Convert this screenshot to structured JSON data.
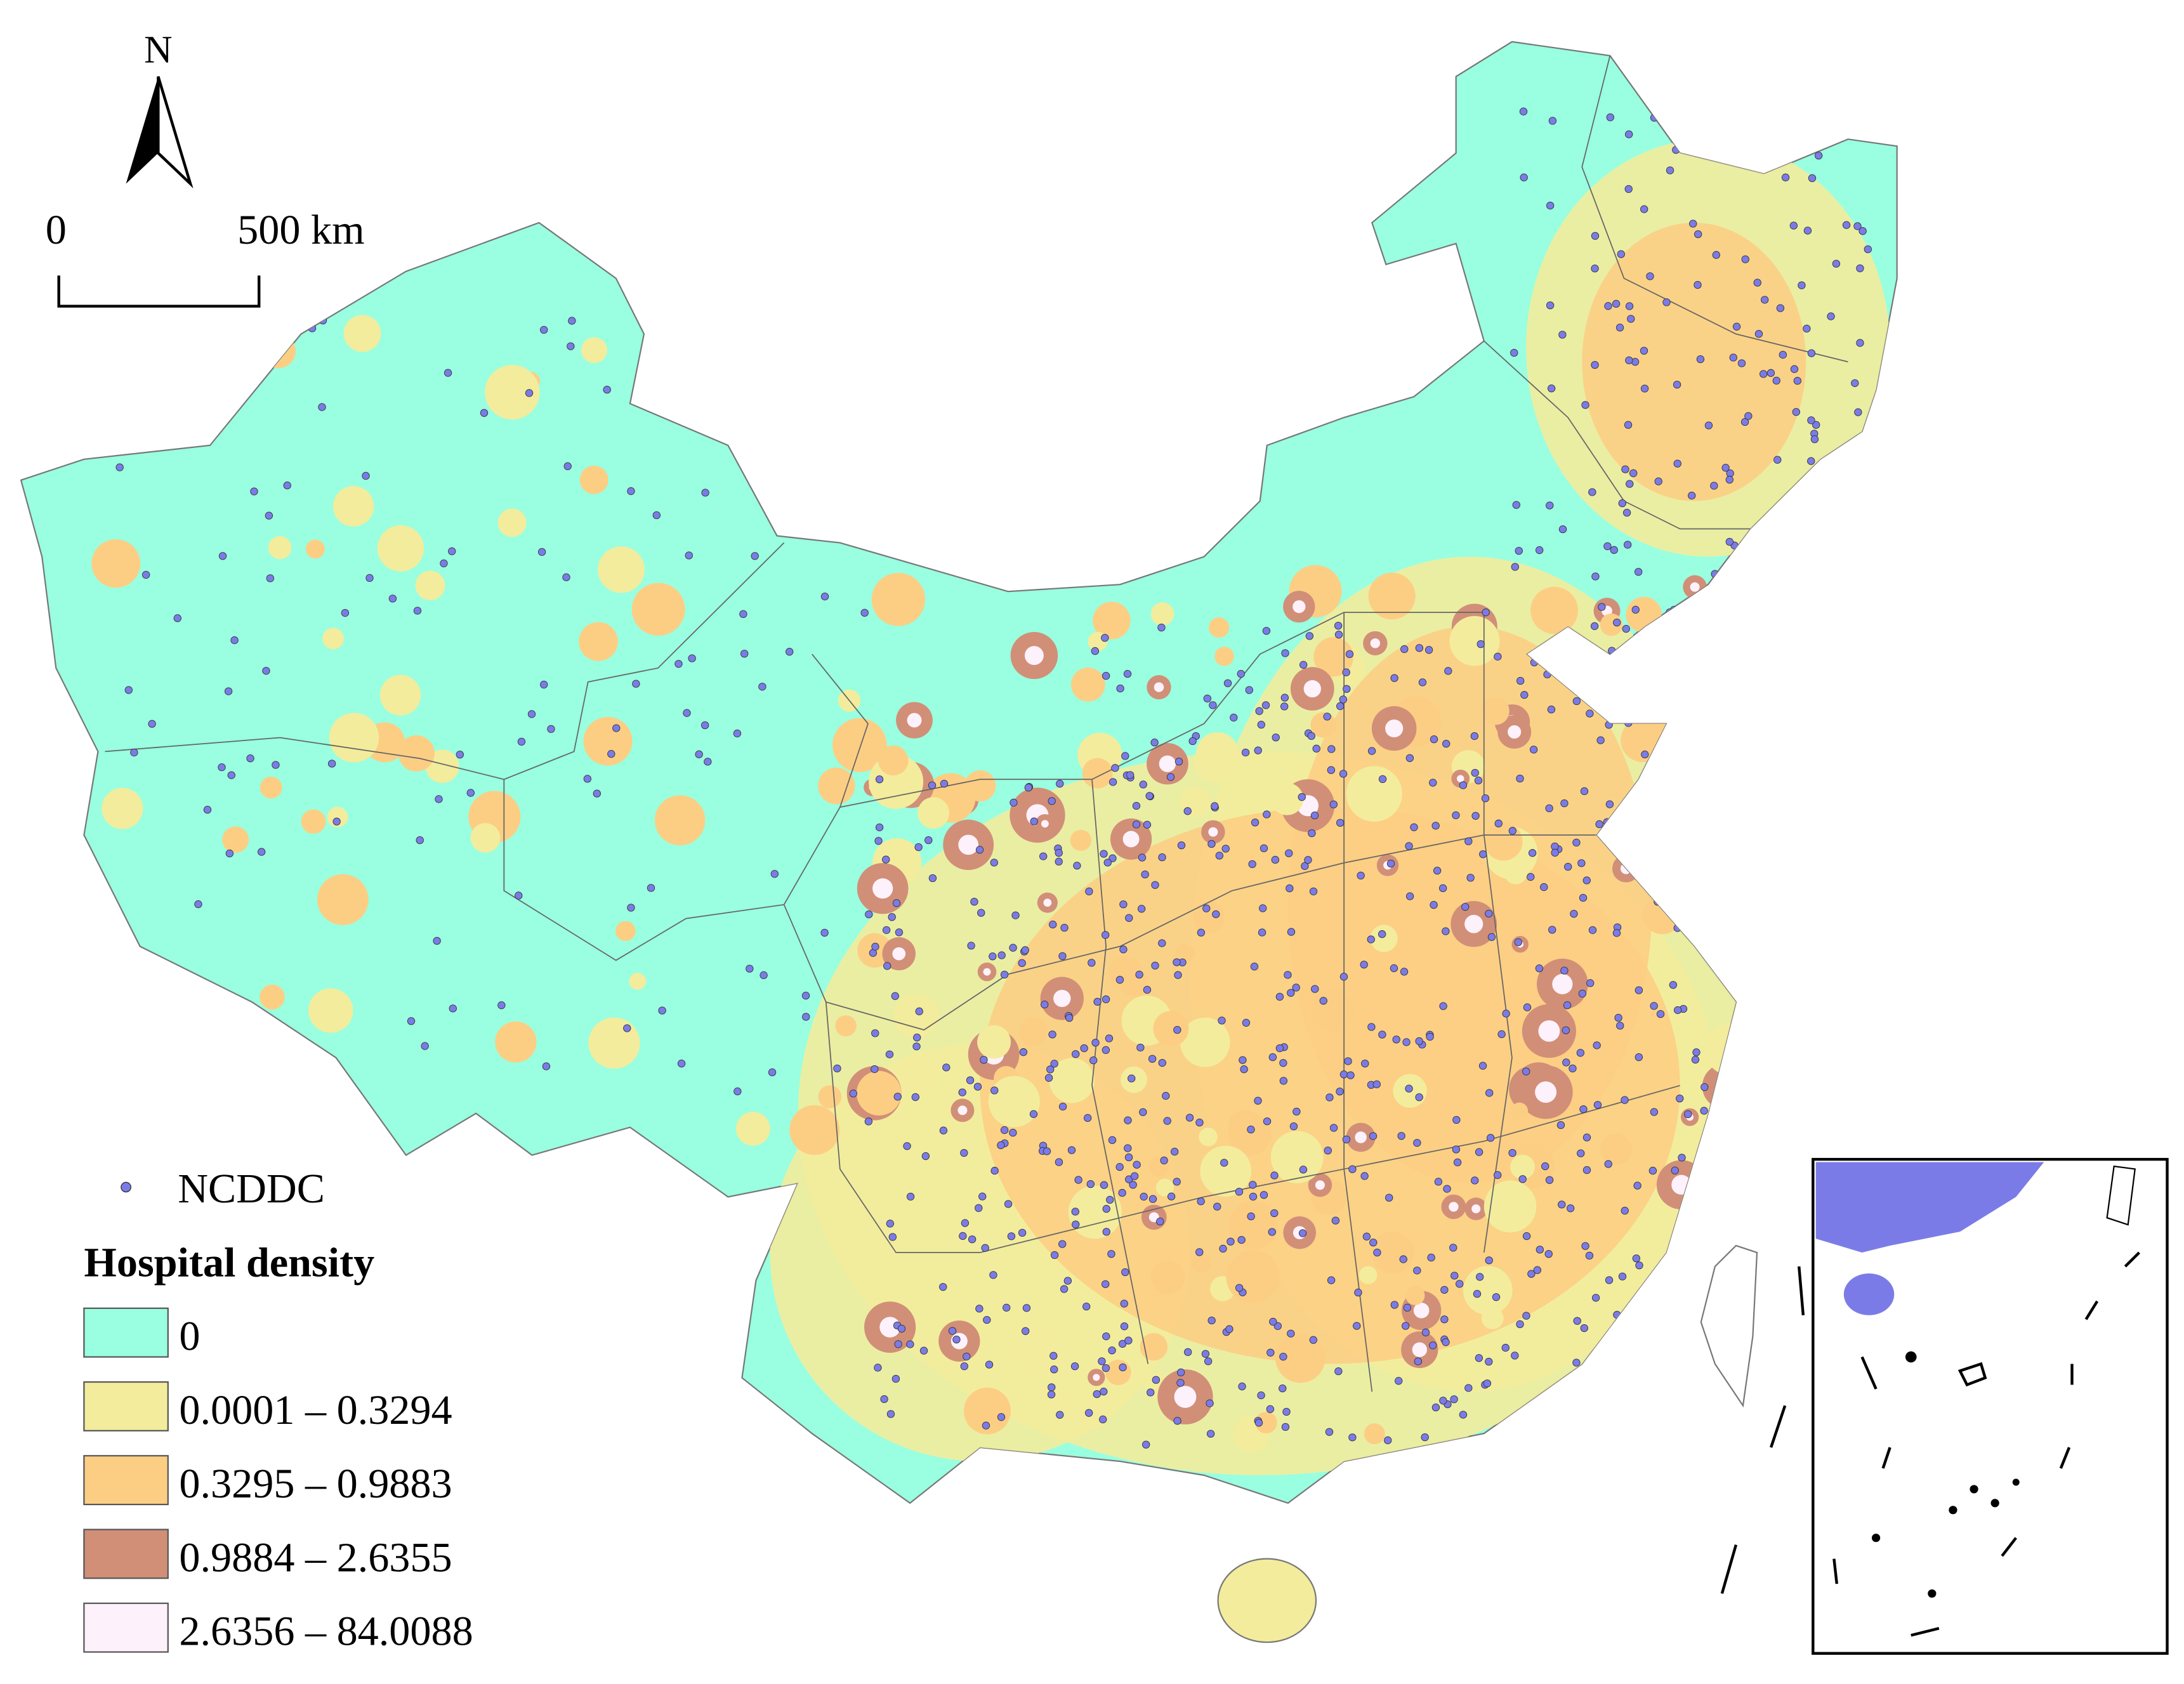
{
  "map": {
    "north_label": "N",
    "scale_bar": {
      "start": "0",
      "end": "500 km"
    },
    "legend": {
      "points_label": "NCDDC",
      "points_color": "#7b7be8",
      "title": "Hospital density",
      "classes": [
        {
          "label": "0",
          "color": "#99ffe0"
        },
        {
          "label": "0.0001 – 0.3294",
          "color": "#f3ec9c"
        },
        {
          "label": "0.3295 – 0.9883",
          "color": "#fcce84"
        },
        {
          "label": "0.9884 – 2.6355",
          "color": "#d18f78"
        },
        {
          "label": "2.6356 – 84.0088",
          "color": "#fdf1fb"
        }
      ]
    }
  }
}
